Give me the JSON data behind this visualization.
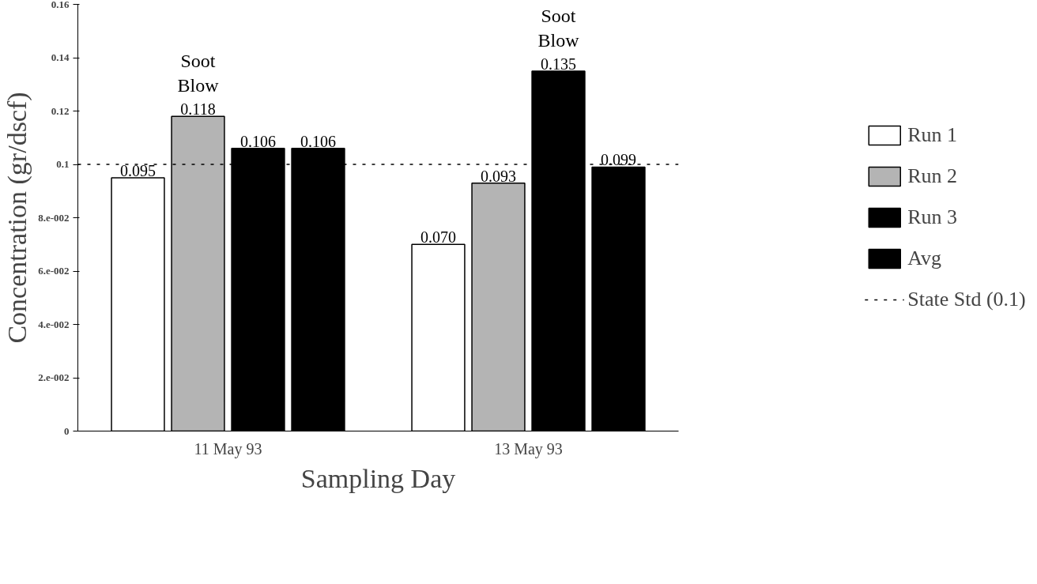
{
  "chart_data": {
    "type": "bar",
    "xlabel": "Sampling Day",
    "ylabel": "Concentration (gr/dscf)",
    "categories": [
      "11 May 93",
      "13 May 93"
    ],
    "series": [
      {
        "name": "Run 1",
        "color": "#ffffff",
        "values": [
          0.095,
          0.07
        ],
        "value_labels": [
          "0.095",
          "0.070"
        ]
      },
      {
        "name": "Run 2",
        "color": "#b4b4b4",
        "values": [
          0.118,
          0.093
        ],
        "value_labels": [
          "0.118",
          "0.093"
        ]
      },
      {
        "name": "Run 3",
        "color": "#000000",
        "values": [
          0.106,
          0.135
        ],
        "value_labels": [
          "0.106",
          "0.135"
        ]
      },
      {
        "name": "Avg",
        "color": "#000000",
        "values": [
          0.106,
          0.099
        ],
        "value_labels": [
          "0.106",
          "0.099"
        ]
      }
    ],
    "ylim": [
      0,
      0.16
    ],
    "yticks": [
      0,
      {
        "value": 0.02,
        "label": "2.e-002"
      },
      {
        "value": 0.04,
        "label": "4.e-002"
      },
      {
        "value": 0.06,
        "label": "6.e-002"
      },
      {
        "value": 0.08,
        "label": "8.e-002"
      },
      0.1,
      0.12,
      0.14,
      0.16
    ],
    "ref_lines": [
      {
        "axis": "y",
        "value": 0.1,
        "label": "State Std (0.1)",
        "color": "#000000",
        "line_style": "dotted"
      }
    ],
    "annotations": [
      "Soot Blow",
      "Soot Blow"
    ],
    "legend": "right",
    "grid": false
  }
}
